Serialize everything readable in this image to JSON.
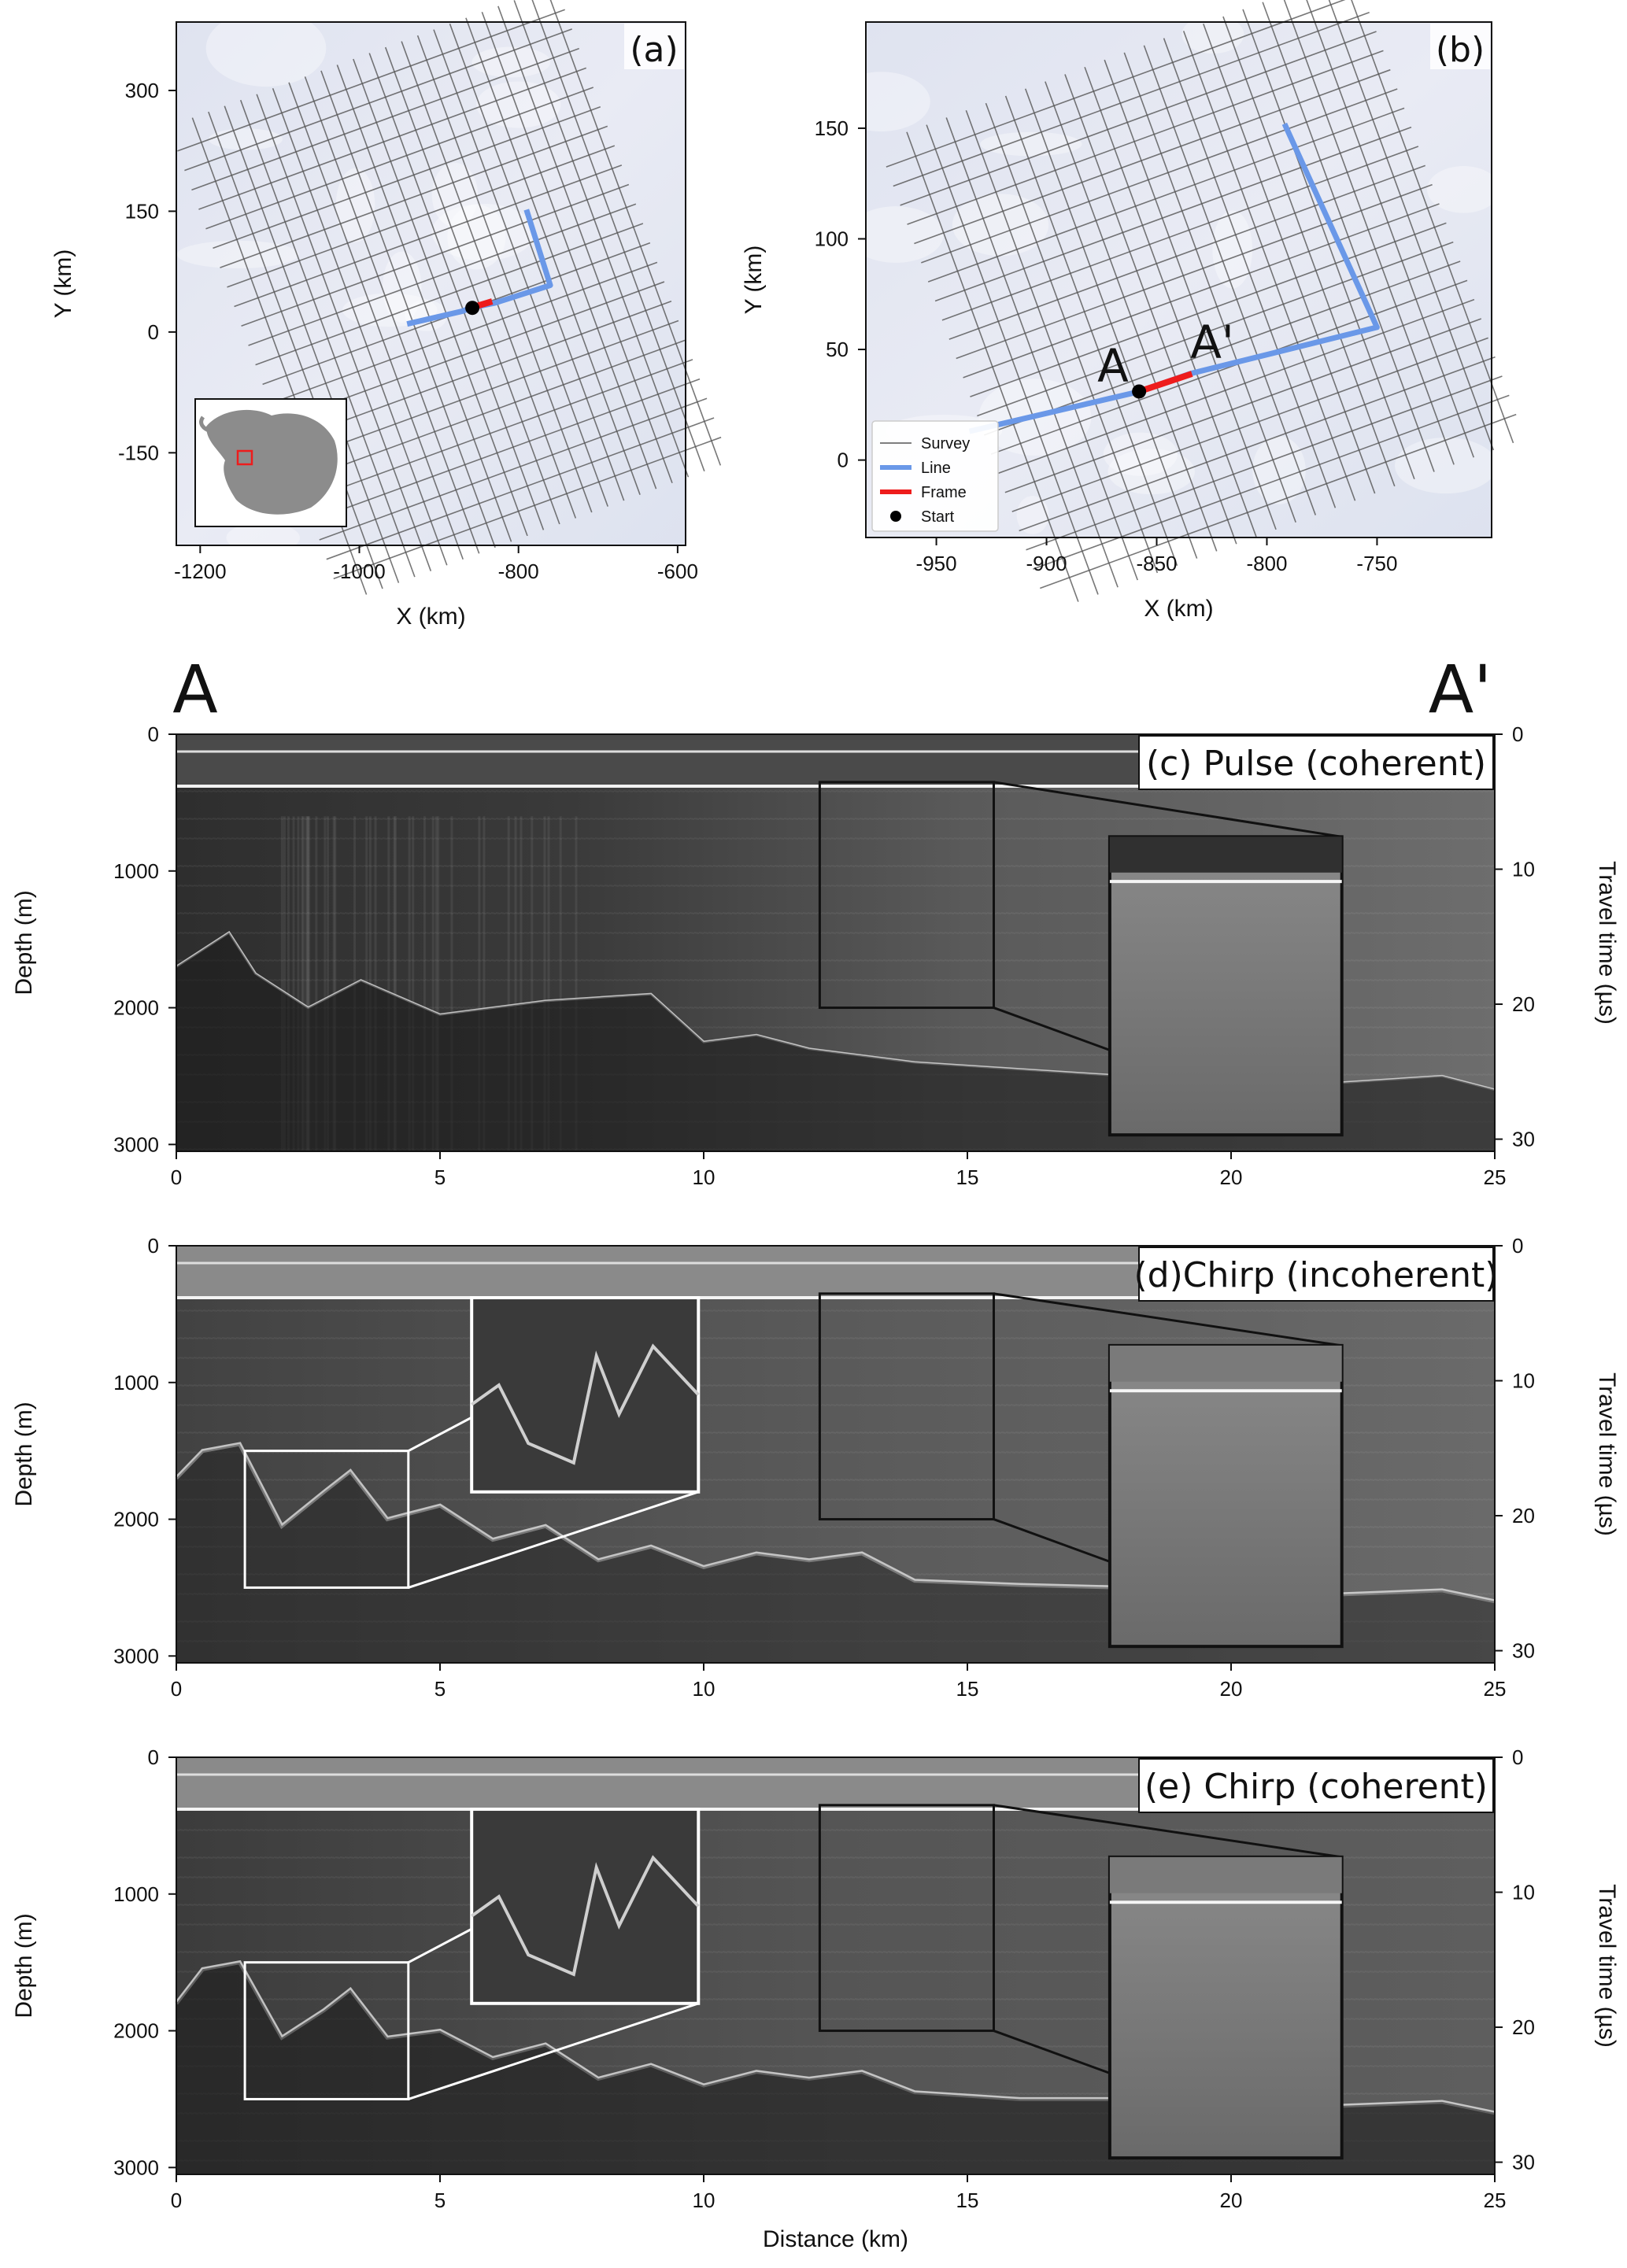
{
  "figure_labels": {
    "A": "A",
    "A_prime": "A'"
  },
  "chart_data": [
    {
      "panel": "(a)",
      "type": "scatter",
      "xlabel": "X (km)",
      "ylabel": "Y (km)",
      "xlim": [
        -1230,
        -590
      ],
      "ylim": [
        -265,
        385
      ],
      "xticks": [
        -1200,
        -1000,
        -800,
        -600
      ],
      "yticks": [
        -150,
        0,
        150,
        300
      ],
      "line_path": {
        "x": [
          -940,
          -870,
          -860,
          -830,
          -760,
          -790
        ],
        "y": [
          10,
          26,
          30,
          36,
          58,
          152
        ]
      },
      "frame_path": {
        "x": [
          -860,
          -833
        ],
        "y": [
          30,
          38
        ]
      },
      "start_point": {
        "x": -858,
        "y": 30
      },
      "colors": {
        "survey": "#555555",
        "line": "#6a98e8",
        "frame": "#ee1c1c",
        "start": "#000000",
        "inset_box": "#ee1c1c"
      }
    },
    {
      "panel": "(b)",
      "type": "scatter",
      "xlabel": "X (km)",
      "ylabel": "Y (km)",
      "xlim": [
        -982,
        -698
      ],
      "ylim": [
        -35,
        198
      ],
      "xticks": [
        -950,
        -900,
        -850,
        -800,
        -750
      ],
      "yticks": [
        0,
        50,
        100,
        150
      ],
      "legend": [
        "Survey",
        "Line",
        "Frame",
        "Start"
      ],
      "legend_position": "lower-left",
      "line_path": {
        "x": [
          -935,
          -862,
          -858,
          -835,
          -750,
          -792
        ],
        "y": [
          13,
          30,
          31,
          39,
          60,
          152
        ]
      },
      "frame_path": {
        "x": [
          -858,
          -834
        ],
        "y": [
          31,
          39
        ]
      },
      "start_point": {
        "x": -858,
        "y": 31
      },
      "annotations": [
        "A",
        "A'"
      ],
      "colors": {
        "survey": "#555555",
        "line": "#6a98e8",
        "frame": "#ee1c1c",
        "start": "#000000"
      }
    },
    {
      "panel": "(c)",
      "title": "(c) Pulse (coherent)",
      "type": "heatmap",
      "xlabel": "",
      "ylabel": "Depth (m)",
      "y2label": "Travel time (µs)",
      "xlim": [
        0,
        25
      ],
      "ylim": [
        3050,
        0
      ],
      "xticks": [
        0,
        5,
        10,
        15,
        20,
        25
      ],
      "yticks": [
        0,
        1000,
        2000,
        3000
      ],
      "y2ticks": [
        0,
        10,
        20,
        30
      ],
      "y2lim": [
        0,
        30.9
      ],
      "surface_depth_m": 380,
      "bed_depth_m": {
        "x": [
          0,
          1,
          1.5,
          2.5,
          3.5,
          5,
          7,
          9,
          10,
          11,
          12,
          14,
          16,
          18,
          20,
          22,
          24,
          25
        ],
        "y": [
          1700,
          1450,
          1750,
          2000,
          1800,
          2050,
          1950,
          1900,
          2250,
          2200,
          2300,
          2400,
          2450,
          2500,
          2520,
          2550,
          2500,
          2600
        ]
      },
      "zoom_box": {
        "x": [
          12.2,
          15.5
        ],
        "y": [
          350,
          2000
        ]
      },
      "inset_box": {
        "x": [
          17.7,
          22.1
        ],
        "y": [
          750,
          2930
        ]
      }
    },
    {
      "panel": "(d)",
      "title": "(d)Chirp (incoherent)",
      "type": "heatmap",
      "xlabel": "",
      "ylabel": "Depth (m)",
      "y2label": "Travel time (µs)",
      "xlim": [
        0,
        25
      ],
      "ylim": [
        3050,
        0
      ],
      "xticks": [
        0,
        5,
        10,
        15,
        20,
        25
      ],
      "yticks": [
        0,
        1000,
        2000,
        3000
      ],
      "y2ticks": [
        0,
        10,
        20,
        30
      ],
      "y2lim": [
        0,
        30.9
      ],
      "surface_depth_m": 380,
      "bed_depth_m": {
        "x": [
          0,
          0.5,
          1.2,
          2,
          2.8,
          3.3,
          4,
          5,
          6,
          7,
          8,
          9,
          10,
          11,
          12,
          13,
          14,
          16,
          18,
          20,
          22,
          24,
          25
        ],
        "y": [
          1700,
          1500,
          1450,
          2050,
          1800,
          1650,
          2000,
          1900,
          2150,
          2050,
          2300,
          2200,
          2350,
          2250,
          2300,
          2250,
          2450,
          2480,
          2500,
          2520,
          2550,
          2520,
          2600
        ]
      },
      "zoom_boxes": [
        {
          "color": "white",
          "x": [
            1.3,
            4.4
          ],
          "y": [
            1500,
            2500
          ]
        },
        {
          "color": "black",
          "x": [
            12.2,
            15.5
          ],
          "y": [
            350,
            2000
          ]
        }
      ],
      "inset_boxes": [
        {
          "color": "white",
          "x": [
            5.6,
            9.9
          ],
          "y": [
            380,
            1800
          ]
        },
        {
          "color": "black",
          "x": [
            17.7,
            22.1
          ],
          "y": [
            730,
            2930
          ]
        }
      ]
    },
    {
      "panel": "(e)",
      "title": "(e) Chirp (coherent)",
      "type": "heatmap",
      "xlabel": "Distance (km)",
      "ylabel": "Depth (m)",
      "y2label": "Travel time (µs)",
      "xlim": [
        0,
        25
      ],
      "ylim": [
        3050,
        0
      ],
      "xticks": [
        0,
        5,
        10,
        15,
        20,
        25
      ],
      "yticks": [
        0,
        1000,
        2000,
        3000
      ],
      "y2ticks": [
        0,
        10,
        20,
        30
      ],
      "y2lim": [
        0,
        30.9
      ],
      "surface_depth_m": 380,
      "bed_depth_m": {
        "x": [
          0,
          0.5,
          1.2,
          2,
          2.8,
          3.3,
          4,
          5,
          6,
          7,
          8,
          9,
          10,
          11,
          12,
          13,
          14,
          16,
          18,
          20,
          22,
          24,
          25
        ],
        "y": [
          1800,
          1550,
          1500,
          2050,
          1850,
          1700,
          2050,
          2000,
          2200,
          2100,
          2350,
          2250,
          2400,
          2300,
          2350,
          2300,
          2450,
          2500,
          2500,
          2520,
          2550,
          2520,
          2600
        ]
      },
      "zoom_boxes": [
        {
          "color": "white",
          "x": [
            1.3,
            4.4
          ],
          "y": [
            1500,
            2500
          ]
        },
        {
          "color": "black",
          "x": [
            12.2,
            15.5
          ],
          "y": [
            350,
            2000
          ]
        }
      ],
      "inset_boxes": [
        {
          "color": "white",
          "x": [
            5.6,
            9.9
          ],
          "y": [
            380,
            1800
          ]
        },
        {
          "color": "black",
          "x": [
            17.7,
            22.1
          ],
          "y": [
            730,
            2930
          ]
        }
      ]
    }
  ]
}
